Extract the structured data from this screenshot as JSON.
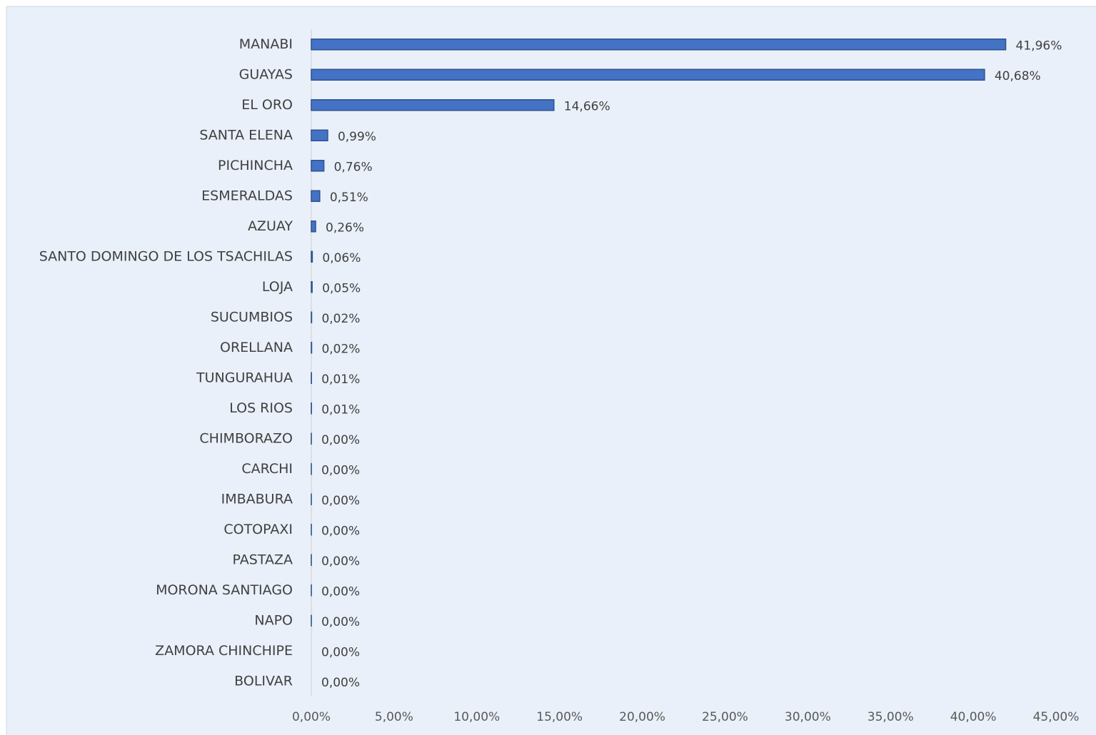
{
  "chart_data": {
    "type": "bar",
    "orientation": "horizontal",
    "categories": [
      "MANABI",
      "GUAYAS",
      "EL ORO",
      "SANTA ELENA",
      "PICHINCHA",
      "ESMERALDAS",
      "AZUAY",
      "SANTO DOMINGO DE LOS TSACHILAS",
      "LOJA",
      "SUCUMBIOS",
      "ORELLANA",
      "TUNGURAHUA",
      "LOS RIOS",
      "CHIMBORAZO",
      "CARCHI",
      "IMBABURA",
      "COTOPAXI",
      "PASTAZA",
      "MORONA SANTIAGO",
      "NAPO",
      "ZAMORA CHINCHIPE",
      "BOLIVAR"
    ],
    "values": [
      41.96,
      40.68,
      14.66,
      0.99,
      0.76,
      0.51,
      0.26,
      0.06,
      0.05,
      0.02,
      0.02,
      0.01,
      0.01,
      0.003,
      0.003,
      0.003,
      0.003,
      0.003,
      0.003,
      0.003,
      0,
      0
    ],
    "value_labels": [
      "41,96%",
      "40,68%",
      "14,66%",
      "0,99%",
      "0,76%",
      "0,51%",
      "0,26%",
      "0,06%",
      "0,05%",
      "0,02%",
      "0,02%",
      "0,01%",
      "0,01%",
      "0,00%",
      "0,00%",
      "0,00%",
      "0,00%",
      "0,00%",
      "0,00%",
      "0,00%",
      "0,00%",
      "0,00%"
    ],
    "color": "#4472c4",
    "xlim": [
      0,
      45
    ],
    "xticks": [
      {
        "value": 0,
        "label": "0,00%"
      },
      {
        "value": 5,
        "label": "5,00%"
      },
      {
        "value": 10,
        "label": "10,00%"
      },
      {
        "value": 15,
        "label": "15,00%"
      },
      {
        "value": 20,
        "label": "20,00%"
      },
      {
        "value": 25,
        "label": "25,00%"
      },
      {
        "value": 30,
        "label": "30,00%"
      },
      {
        "value": 35,
        "label": "35,00%"
      },
      {
        "value": 40,
        "label": "40,00%"
      },
      {
        "value": 45,
        "label": "45,00%"
      }
    ],
    "grid": false
  }
}
